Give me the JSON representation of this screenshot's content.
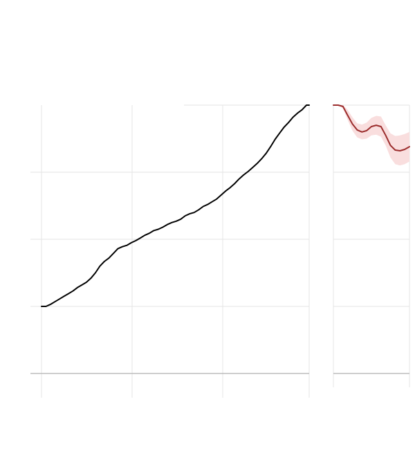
{
  "chart_data": [
    {
      "type": "line",
      "title": "",
      "xlabel": "",
      "ylabel": "",
      "grid": true,
      "legend": "none",
      "xlim": [
        0,
        59.6
      ],
      "ylim": [
        0,
        4
      ],
      "series": [
        {
          "color": "#000000",
          "points": [
            [
              0,
              1.0
            ],
            [
              1,
              1.0
            ],
            [
              2,
              1.03
            ],
            [
              3,
              1.07
            ],
            [
              4,
              1.11
            ],
            [
              5,
              1.15
            ],
            [
              6,
              1.19
            ],
            [
              7,
              1.23
            ],
            [
              8,
              1.28
            ],
            [
              9,
              1.32
            ],
            [
              10,
              1.36
            ],
            [
              11,
              1.42
            ],
            [
              12,
              1.5
            ],
            [
              13,
              1.6
            ],
            [
              14,
              1.67
            ],
            [
              15,
              1.72
            ],
            [
              16,
              1.79
            ],
            [
              17,
              1.86
            ],
            [
              18,
              1.89
            ],
            [
              19,
              1.91
            ],
            [
              20,
              1.95
            ],
            [
              21,
              1.98
            ],
            [
              22,
              2.02
            ],
            [
              23,
              2.06
            ],
            [
              24,
              2.09
            ],
            [
              25,
              2.13
            ],
            [
              26,
              2.15
            ],
            [
              27,
              2.18
            ],
            [
              28,
              2.22
            ],
            [
              29,
              2.25
            ],
            [
              30,
              2.27
            ],
            [
              31,
              2.3
            ],
            [
              32,
              2.35
            ],
            [
              33,
              2.38
            ],
            [
              34,
              2.4
            ],
            [
              35,
              2.44
            ],
            [
              36,
              2.49
            ],
            [
              37,
              2.52
            ],
            [
              38,
              2.56
            ],
            [
              39,
              2.6
            ],
            [
              40,
              2.66
            ],
            [
              41,
              2.72
            ],
            [
              42,
              2.77
            ],
            [
              43,
              2.83
            ],
            [
              44,
              2.9
            ],
            [
              45,
              2.96
            ],
            [
              46,
              3.01
            ],
            [
              47,
              3.07
            ],
            [
              48,
              3.13
            ],
            [
              49,
              3.2
            ],
            [
              50,
              3.28
            ],
            [
              51,
              3.38
            ],
            [
              52,
              3.49
            ],
            [
              53,
              3.58
            ],
            [
              54,
              3.67
            ],
            [
              55,
              3.74
            ],
            [
              56,
              3.82
            ],
            [
              57,
              3.88
            ],
            [
              58,
              3.93
            ],
            [
              59,
              4.0
            ],
            [
              59.6,
              4.0
            ]
          ]
        }
      ]
    },
    {
      "type": "line",
      "title": "",
      "xlabel": "",
      "ylabel": "",
      "grid": true,
      "legend": "none",
      "xlim": [
        0,
        16
      ],
      "ylim": [
        0,
        4
      ],
      "series": [
        {
          "color": "#9b2c2c",
          "band_color": "#f9dede",
          "points": [
            [
              0,
              4.0
            ],
            [
              1,
              4.0
            ],
            [
              2,
              3.98
            ],
            [
              3,
              3.85
            ],
            [
              4,
              3.72
            ],
            [
              5,
              3.63
            ],
            [
              6,
              3.6
            ],
            [
              7,
              3.62
            ],
            [
              8,
              3.68
            ],
            [
              9,
              3.7
            ],
            [
              10,
              3.68
            ],
            [
              11,
              3.55
            ],
            [
              12,
              3.4
            ],
            [
              13,
              3.33
            ],
            [
              14,
              3.32
            ],
            [
              15,
              3.34
            ],
            [
              16,
              3.38
            ]
          ],
          "band_lower": [
            4.0,
            4.0,
            3.95,
            3.78,
            3.62,
            3.52,
            3.49,
            3.5,
            3.55,
            3.56,
            3.53,
            3.4,
            3.22,
            3.12,
            3.1,
            3.12,
            3.16
          ],
          "band_upper": [
            4.0,
            4.0,
            4.0,
            3.93,
            3.82,
            3.73,
            3.71,
            3.74,
            3.81,
            3.84,
            3.83,
            3.7,
            3.58,
            3.54,
            3.55,
            3.57,
            3.6
          ]
        }
      ]
    }
  ]
}
